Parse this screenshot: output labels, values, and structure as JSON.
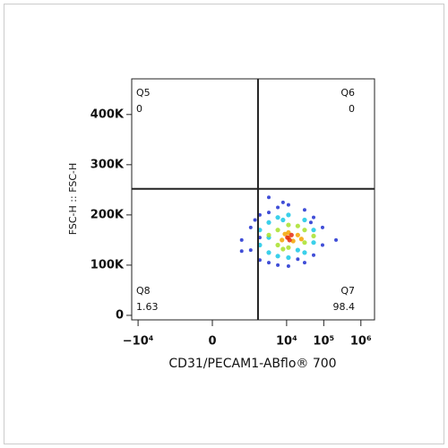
{
  "chart_data": {
    "type": "scatter",
    "xlabel": "CD31/PECAM1-ABflo® 700",
    "ylabel": "FSC-H :: FSC-H",
    "xscale": "arcsinh",
    "xlim": [
      -14840,
      2330000
    ],
    "ylim": [
      -9000,
      471000
    ],
    "xticks": [
      {
        "value": -10000,
        "label": "−10⁴"
      },
      0,
      {
        "value": 10000,
        "label": "10⁴"
      },
      {
        "value": 100000,
        "label": "10⁵"
      },
      {
        "value": 1000000,
        "label": "10⁶"
      }
    ],
    "yticks": [
      0,
      {
        "value": 100000,
        "label": "100K"
      },
      {
        "value": 200000,
        "label": "200K"
      },
      {
        "value": 300000,
        "label": "300K"
      },
      {
        "value": 400000,
        "label": "400K"
      }
    ],
    "gate": {
      "x": 1690,
      "y": 252000,
      "quadrants": [
        {
          "name": "Q5",
          "value": 0
        },
        {
          "name": "Q6",
          "value": 0
        },
        {
          "name": "Q7",
          "value": 98.4
        },
        {
          "name": "Q8",
          "value": 1.63
        }
      ]
    },
    "series": [
      {
        "color": "#1f2fd0",
        "x": [
          600,
          1070,
          1070,
          1890,
          1890,
          3310,
          3310,
          5790,
          5790,
          11200,
          11200,
          30500,
          30500,
          53300,
          53300,
          92700,
          92700,
          214000,
          1890,
          600,
          3310,
          8000,
          20000,
          1400,
          45000
        ],
        "values": [
          150000,
          130000,
          175000,
          110000,
          200000,
          105000,
          205000,
          100000,
          215000,
          98000,
          220000,
          105000,
          210000,
          120000,
          195000,
          140000,
          175000,
          150000,
          155000,
          128000,
          235000,
          225000,
          112000,
          190000,
          185000
        ]
      },
      {
        "color": "#19c8e6",
        "x": [
          1890,
          1890,
          3310,
          3310,
          5790,
          5790,
          11200,
          11200,
          30500,
          30500,
          53300,
          53300,
          3310,
          20000,
          8000
        ],
        "values": [
          140000,
          170000,
          125000,
          185000,
          118000,
          195000,
          115000,
          200000,
          125000,
          190000,
          145000,
          170000,
          155000,
          130000,
          190000
        ]
      },
      {
        "color": "#a8e02a",
        "x": [
          5790,
          5790,
          11200,
          11200,
          30500,
          30500,
          3310,
          53300,
          20000,
          8000
        ],
        "values": [
          140000,
          170000,
          135000,
          180000,
          145000,
          170000,
          160000,
          158000,
          178000,
          132000
        ]
      },
      {
        "color": "#f5a400",
        "x": [
          7500,
          11200,
          11200,
          15000,
          20000,
          9000,
          25000
        ],
        "values": [
          150000,
          155000,
          165000,
          148000,
          160000,
          162000,
          152000
        ]
      },
      {
        "color": "#e52a10",
        "x": [
          10500,
          13500,
          12000
        ],
        "values": [
          155000,
          160000,
          150000
        ]
      }
    ]
  }
}
